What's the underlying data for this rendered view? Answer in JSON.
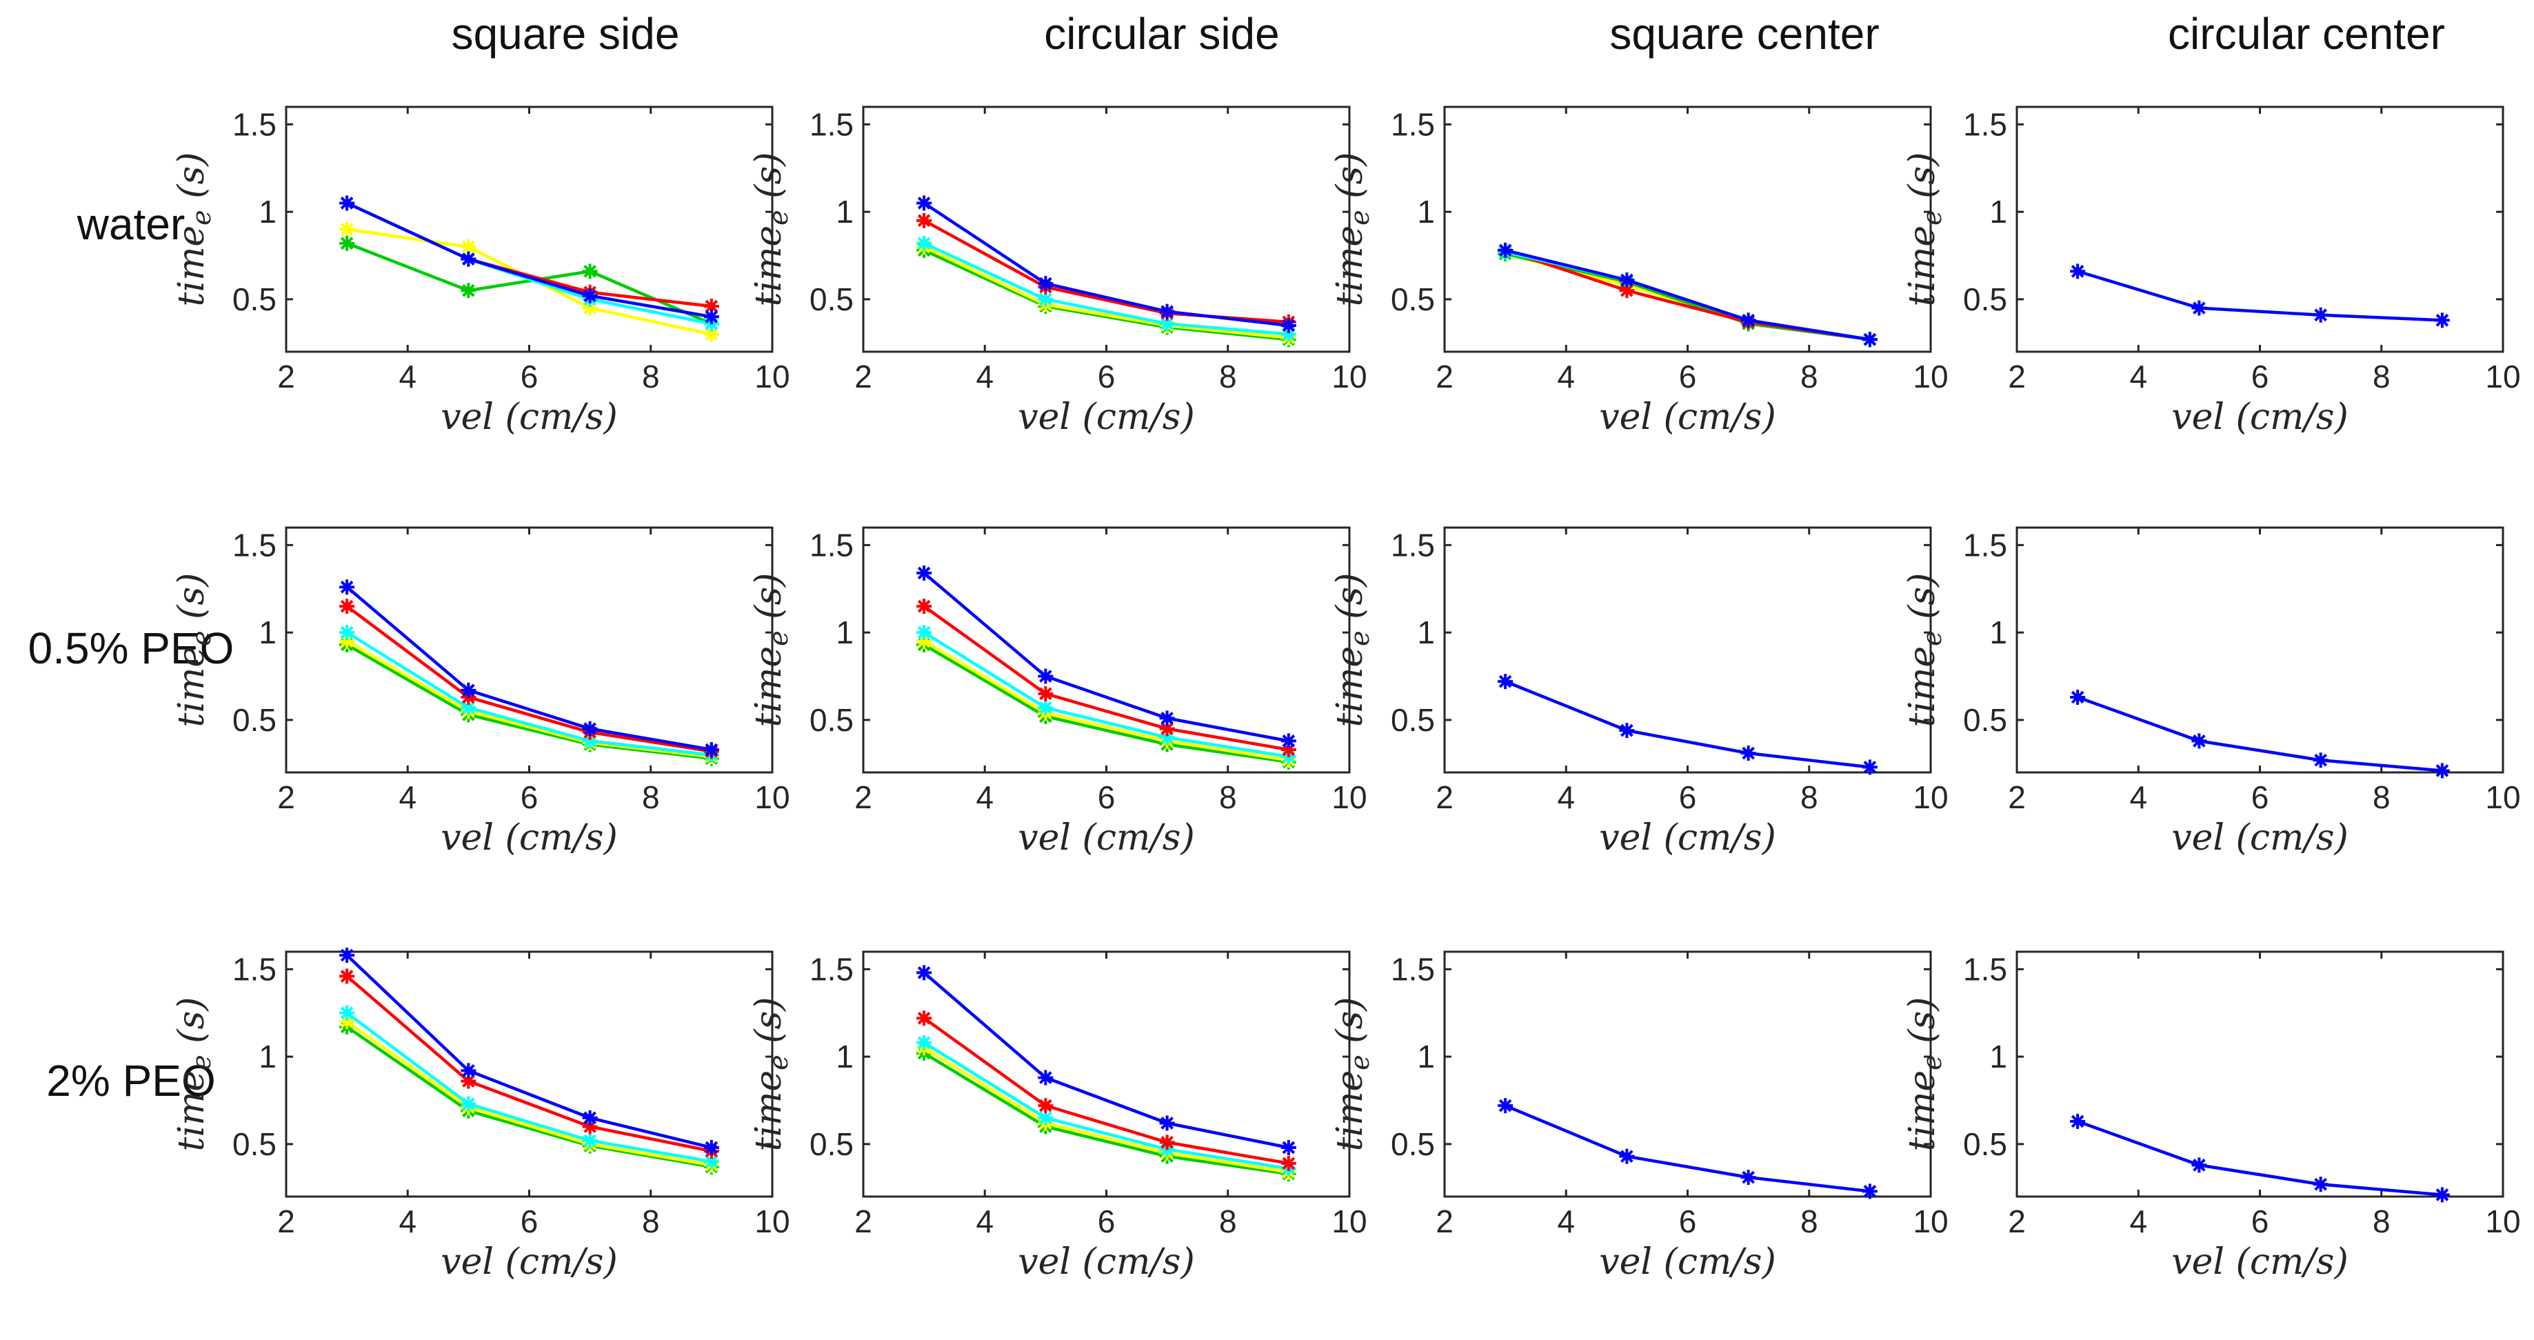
{
  "column_titles": [
    "square side",
    "circular side",
    "square center",
    "circular center"
  ],
  "row_labels": [
    "water",
    "0.5% PEO",
    "2% PEO"
  ],
  "series_colors": [
    "#0000ff",
    "#ff0000",
    "#00ffff",
    "#ffff00",
    "#00cc00"
  ],
  "chart_data": {
    "type": "line",
    "layout": "3x4 grid of subplots",
    "xlabel": "vel (cm/s)",
    "ylabel": "time_e (s)",
    "xlim": [
      2,
      10
    ],
    "ylim": [
      0.2,
      1.6
    ],
    "xticks": [
      "2",
      "4",
      "6",
      "8",
      "10"
    ],
    "yticks": [
      "0.5",
      "1",
      "1.5"
    ],
    "x": [
      3,
      5,
      7,
      9
    ],
    "marker": "*",
    "panels": [
      [
        {
          "series": [
            {
              "color": "#ffff00",
              "values": [
                0.9,
                0.8,
                0.45,
                0.3
              ]
            },
            {
              "color": "#00cc00",
              "values": [
                0.82,
                0.55,
                0.66,
                0.36
              ]
            },
            {
              "color": "#ff0000",
              "values": [
                1.05,
                0.73,
                0.54,
                0.46
              ]
            },
            {
              "color": "#00ffff",
              "values": [
                1.05,
                0.73,
                0.5,
                0.36
              ]
            },
            {
              "color": "#0000ff",
              "values": [
                1.05,
                0.73,
                0.52,
                0.4
              ]
            }
          ]
        },
        {
          "series": [
            {
              "color": "#00cc00",
              "values": [
                0.78,
                0.46,
                0.34,
                0.27
              ]
            },
            {
              "color": "#ffff00",
              "values": [
                0.8,
                0.47,
                0.35,
                0.28
              ]
            },
            {
              "color": "#00ffff",
              "values": [
                0.82,
                0.5,
                0.36,
                0.3
              ]
            },
            {
              "color": "#ff0000",
              "values": [
                0.95,
                0.57,
                0.42,
                0.37
              ]
            },
            {
              "color": "#0000ff",
              "values": [
                1.05,
                0.59,
                0.43,
                0.35
              ]
            }
          ]
        },
        {
          "series": [
            {
              "color": "#ffff00",
              "values": [
                0.76,
                0.58,
                0.37,
                0.27
              ]
            },
            {
              "color": "#00cc00",
              "values": [
                0.76,
                0.6,
                0.36,
                0.27
              ]
            },
            {
              "color": "#ff0000",
              "values": [
                0.78,
                0.55,
                0.37,
                0.27
              ]
            },
            {
              "color": "#00ffff",
              "values": [
                0.77,
                0.61,
                0.38,
                0.27
              ]
            },
            {
              "color": "#0000ff",
              "values": [
                0.78,
                0.61,
                0.38,
                0.27
              ]
            }
          ]
        },
        {
          "series": [
            {
              "color": "#0000ff",
              "values": [
                0.66,
                0.45,
                0.41,
                0.38
              ]
            }
          ]
        }
      ],
      [
        {
          "series": [
            {
              "color": "#00cc00",
              "values": [
                0.93,
                0.53,
                0.36,
                0.28
              ]
            },
            {
              "color": "#ffff00",
              "values": [
                0.95,
                0.55,
                0.37,
                0.29
              ]
            },
            {
              "color": "#00ffff",
              "values": [
                1.0,
                0.57,
                0.38,
                0.3
              ]
            },
            {
              "color": "#ff0000",
              "values": [
                1.15,
                0.63,
                0.43,
                0.32
              ]
            },
            {
              "color": "#0000ff",
              "values": [
                1.26,
                0.67,
                0.45,
                0.33
              ]
            }
          ]
        },
        {
          "series": [
            {
              "color": "#00cc00",
              "values": [
                0.93,
                0.52,
                0.36,
                0.26
              ]
            },
            {
              "color": "#ffff00",
              "values": [
                0.95,
                0.54,
                0.38,
                0.27
              ]
            },
            {
              "color": "#00ffff",
              "values": [
                1.0,
                0.57,
                0.4,
                0.29
              ]
            },
            {
              "color": "#ff0000",
              "values": [
                1.15,
                0.65,
                0.45,
                0.33
              ]
            },
            {
              "color": "#0000ff",
              "values": [
                1.34,
                0.75,
                0.51,
                0.38
              ]
            }
          ]
        },
        {
          "series": [
            {
              "color": "#0000ff",
              "values": [
                0.72,
                0.44,
                0.31,
                0.23
              ]
            }
          ]
        },
        {
          "series": [
            {
              "color": "#0000ff",
              "values": [
                0.63,
                0.38,
                0.27,
                0.21
              ]
            }
          ]
        }
      ],
      [
        {
          "series": [
            {
              "color": "#00cc00",
              "values": [
                1.17,
                0.69,
                0.49,
                0.37
              ]
            },
            {
              "color": "#ffff00",
              "values": [
                1.2,
                0.71,
                0.5,
                0.38
              ]
            },
            {
              "color": "#00ffff",
              "values": [
                1.25,
                0.73,
                0.52,
                0.4
              ]
            },
            {
              "color": "#ff0000",
              "values": [
                1.46,
                0.86,
                0.6,
                0.46
              ]
            },
            {
              "color": "#0000ff",
              "values": [
                1.58,
                0.92,
                0.65,
                0.48
              ]
            }
          ]
        },
        {
          "series": [
            {
              "color": "#00cc00",
              "values": [
                1.02,
                0.6,
                0.43,
                0.33
              ]
            },
            {
              "color": "#ffff00",
              "values": [
                1.05,
                0.62,
                0.45,
                0.34
              ]
            },
            {
              "color": "#00ffff",
              "values": [
                1.08,
                0.65,
                0.47,
                0.36
              ]
            },
            {
              "color": "#ff0000",
              "values": [
                1.22,
                0.72,
                0.51,
                0.39
              ]
            },
            {
              "color": "#0000ff",
              "values": [
                1.48,
                0.88,
                0.62,
                0.48
              ]
            }
          ]
        },
        {
          "series": [
            {
              "color": "#0000ff",
              "values": [
                0.72,
                0.43,
                0.31,
                0.23
              ]
            }
          ]
        },
        {
          "series": [
            {
              "color": "#0000ff",
              "values": [
                0.63,
                0.38,
                0.27,
                0.21
              ]
            }
          ]
        }
      ]
    ]
  }
}
